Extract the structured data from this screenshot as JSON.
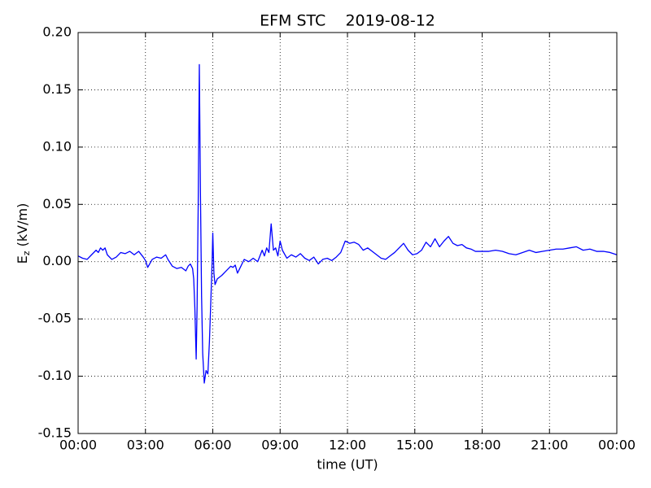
{
  "chart_data": {
    "type": "line",
    "title": "EFM STC    2019-08-12",
    "xlabel": "time (UT)",
    "ylabel": {
      "base": "E",
      "sub": "z",
      "rest": " (kV/m)"
    },
    "color": "#0000ff",
    "grid": true,
    "xlim": [
      0,
      24
    ],
    "xticks": [
      {
        "value": 0,
        "label": "00:00"
      },
      {
        "value": 3,
        "label": "03:00"
      },
      {
        "value": 6,
        "label": "06:00"
      },
      {
        "value": 9,
        "label": "09:00"
      },
      {
        "value": 12,
        "label": "12:00"
      },
      {
        "value": 15,
        "label": "15:00"
      },
      {
        "value": 18,
        "label": "18:00"
      },
      {
        "value": 21,
        "label": "21:00"
      },
      {
        "value": 24,
        "label": "00:00"
      }
    ],
    "ylim": [
      -0.15,
      0.2
    ],
    "yticks": [
      {
        "value": -0.15,
        "label": "-0.15"
      },
      {
        "value": -0.1,
        "label": "-0.10"
      },
      {
        "value": -0.05,
        "label": "-0.05"
      },
      {
        "value": 0,
        "label": "0.00"
      },
      {
        "value": 0.05,
        "label": "0.05"
      },
      {
        "value": 0.1,
        "label": "0.10"
      },
      {
        "value": 0.15,
        "label": "0.15"
      },
      {
        "value": 0.2,
        "label": "0.20"
      }
    ],
    "x": [
      0,
      0.2,
      0.4,
      0.6,
      0.8,
      0.9,
      1.0,
      1.1,
      1.2,
      1.3,
      1.5,
      1.7,
      1.9,
      2.1,
      2.3,
      2.5,
      2.7,
      2.9,
      3.0,
      3.1,
      3.3,
      3.5,
      3.7,
      3.9,
      4.0,
      4.2,
      4.4,
      4.6,
      4.8,
      4.9,
      5.0,
      5.1,
      5.15,
      5.2,
      5.26,
      5.3,
      5.35,
      5.4,
      5.45,
      5.5,
      5.55,
      5.62,
      5.7,
      5.78,
      5.85,
      5.92,
      5.97,
      6.0,
      6.05,
      6.1,
      6.2,
      6.4,
      6.6,
      6.8,
      6.9,
      7.0,
      7.1,
      7.2,
      7.4,
      7.6,
      7.8,
      8.0,
      8.2,
      8.3,
      8.4,
      8.5,
      8.6,
      8.7,
      8.8,
      8.9,
      9.0,
      9.1,
      9.3,
      9.5,
      9.7,
      9.9,
      10.1,
      10.3,
      10.5,
      10.7,
      10.9,
      11.1,
      11.3,
      11.5,
      11.7,
      11.9,
      12.1,
      12.3,
      12.5,
      12.7,
      12.9,
      13.1,
      13.3,
      13.5,
      13.7,
      13.9,
      14.1,
      14.3,
      14.5,
      14.7,
      14.9,
      15.1,
      15.3,
      15.5,
      15.7,
      15.9,
      16.1,
      16.3,
      16.5,
      16.7,
      16.9,
      17.1,
      17.3,
      17.5,
      17.7,
      18.0,
      18.3,
      18.6,
      18.9,
      19.2,
      19.5,
      19.8,
      20.1,
      20.4,
      20.7,
      21.0,
      21.3,
      21.6,
      21.9,
      22.2,
      22.5,
      22.8,
      23.1,
      23.4,
      23.7,
      24
    ],
    "values": [
      0.005,
      0.003,
      0.002,
      0.006,
      0.01,
      0.008,
      0.012,
      0.01,
      0.012,
      0.006,
      0.002,
      0.004,
      0.008,
      0.007,
      0.009,
      0.006,
      0.009,
      0.004,
      0.001,
      -0.005,
      0.002,
      0.004,
      0.003,
      0.006,
      0.002,
      -0.004,
      -0.006,
      -0.005,
      -0.008,
      -0.004,
      -0.002,
      -0.006,
      -0.015,
      -0.04,
      -0.085,
      -0.04,
      0.05,
      0.172,
      0.06,
      -0.03,
      -0.08,
      -0.106,
      -0.095,
      -0.098,
      -0.07,
      -0.03,
      0.0,
      0.025,
      -0.01,
      -0.02,
      -0.015,
      -0.012,
      -0.008,
      -0.004,
      -0.005,
      -0.003,
      -0.01,
      -0.006,
      0.002,
      0.0,
      0.003,
      0.0,
      0.01,
      0.005,
      0.012,
      0.008,
      0.033,
      0.01,
      0.012,
      0.005,
      0.018,
      0.01,
      0.003,
      0.006,
      0.004,
      0.007,
      0.003,
      0.001,
      0.004,
      -0.002,
      0.002,
      0.003,
      0.001,
      0.004,
      0.008,
      0.018,
      0.016,
      0.017,
      0.015,
      0.01,
      0.012,
      0.009,
      0.006,
      0.003,
      0.002,
      0.005,
      0.008,
      0.012,
      0.016,
      0.01,
      0.006,
      0.007,
      0.01,
      0.017,
      0.013,
      0.02,
      0.013,
      0.018,
      0.022,
      0.016,
      0.014,
      0.015,
      0.012,
      0.011,
      0.009,
      0.009,
      0.009,
      0.01,
      0.009,
      0.007,
      0.006,
      0.008,
      0.01,
      0.008,
      0.009,
      0.01,
      0.011,
      0.011,
      0.012,
      0.013,
      0.01,
      0.011,
      0.009,
      0.009,
      0.008,
      0.006
    ]
  }
}
